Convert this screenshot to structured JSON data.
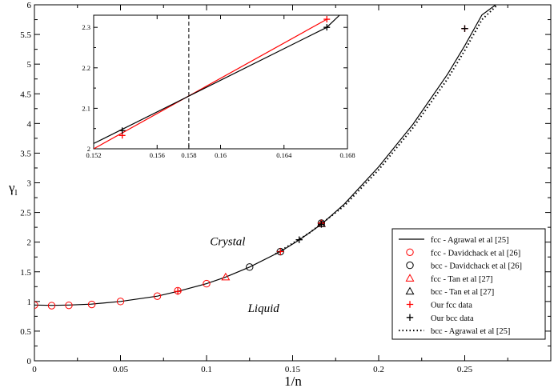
{
  "chart_data": {
    "type": "scatter",
    "title": "",
    "xlabel": "1/n",
    "ylabel_main": "γ",
    "ylabel_sub": "l",
    "xlim": [
      0,
      0.3
    ],
    "ylim": [
      0,
      6
    ],
    "xticks": [
      0,
      0.05,
      0.1,
      0.15,
      0.2,
      0.25
    ],
    "xtick_labels": [
      "0",
      "0.05",
      "0.1",
      "0.15",
      "0.2",
      "0.25"
    ],
    "yticks": [
      0,
      0.5,
      1,
      1.5,
      2,
      2.5,
      3,
      3.5,
      4,
      4.5,
      5,
      5.5,
      6
    ],
    "ytick_labels": [
      "0",
      "0.5",
      "1",
      "1.5",
      "2",
      "2.5",
      "3",
      "3.5",
      "4",
      "4.5",
      "5",
      "5.5",
      "6"
    ],
    "annotations": [
      {
        "text": "Crystal",
        "x": 0.102,
        "y": 1.95
      },
      {
        "text": "Liquid",
        "x": 0.124,
        "y": 0.82
      }
    ],
    "legend_position": "bottom-right",
    "series": [
      {
        "name": "fcc - Agrawal et al [25]",
        "kind": "line",
        "style": "solid",
        "color": "#000000",
        "x": [
          0,
          0.01,
          0.02,
          0.033,
          0.05,
          0.0714,
          0.0833,
          0.1,
          0.111,
          0.125,
          0.1429,
          0.154,
          0.1667,
          0.18,
          0.2,
          0.22,
          0.24,
          0.25,
          0.26,
          0.268
        ],
        "y": [
          0.94,
          0.935,
          0.94,
          0.955,
          1.0,
          1.09,
          1.17,
          1.3,
          1.41,
          1.58,
          1.84,
          2.04,
          2.3,
          2.64,
          3.27,
          3.99,
          4.83,
          5.31,
          5.83,
          6.0
        ]
      },
      {
        "name": "fcc - Davidchack et al [26]",
        "kind": "marker",
        "marker": "circle",
        "color": "#ff0000",
        "x": [
          0,
          0.01,
          0.02,
          0.0333,
          0.05,
          0.0714,
          0.0833,
          0.1
        ],
        "y": [
          0.94,
          0.93,
          0.935,
          0.95,
          1.0,
          1.09,
          1.18,
          1.3
        ]
      },
      {
        "name": "bcc - Davidchack et al [26]",
        "kind": "marker",
        "marker": "circle",
        "color": "#000000",
        "x": [
          0.125,
          0.1429,
          0.1667
        ],
        "y": [
          1.58,
          1.84,
          2.32
        ]
      },
      {
        "name": "fcc - Tan et al [27]",
        "kind": "marker",
        "marker": "triangle",
        "color": "#ff0000",
        "x": [
          0.1111,
          0.1667
        ],
        "y": [
          1.41,
          2.31
        ]
      },
      {
        "name": "bcc - Tan et al [27]",
        "kind": "marker",
        "marker": "triangle",
        "color": "#000000",
        "x": [
          0.1667
        ],
        "y": [
          2.31
        ]
      },
      {
        "name": "Our fcc data",
        "kind": "marker",
        "marker": "plus",
        "color": "#ff0000",
        "x": [
          0.0833,
          0.1429,
          0.1667,
          0.25
        ],
        "y": [
          1.17,
          1.84,
          2.32,
          5.6
        ]
      },
      {
        "name": "Our bcc data",
        "kind": "marker",
        "marker": "plus",
        "color": "#000000",
        "x": [
          0.1538,
          0.1667,
          0.25
        ],
        "y": [
          2.04,
          2.3,
          5.6
        ]
      },
      {
        "name": "bcc - Agrawal et al [25]",
        "kind": "line",
        "style": "dotted",
        "color": "#000000",
        "x": [
          0.14,
          0.16,
          0.18,
          0.2,
          0.22,
          0.24,
          0.25,
          0.26,
          0.269
        ],
        "y": [
          1.8,
          2.16,
          2.61,
          3.22,
          3.93,
          4.75,
          5.23,
          5.75,
          6.0
        ]
      }
    ],
    "inset": {
      "xlim": [
        0.152,
        0.168
      ],
      "ylim": [
        2.0,
        2.33
      ],
      "xticks": [
        0.152,
        0.156,
        0.158,
        0.16,
        0.164,
        0.168
      ],
      "xtick_labels": [
        "0.152",
        "0.156",
        "0.158",
        "0.16",
        "0.164",
        "0.168"
      ],
      "yticks": [
        2.0,
        2.1,
        2.2,
        2.3
      ],
      "ytick_labels": [
        "2",
        "2.1",
        "2.2",
        "2.3"
      ],
      "vline_x": 0.158,
      "series": [
        {
          "name": "fcc",
          "color": "#ff0000",
          "x": [
            0.152,
            0.1667
          ],
          "y": [
            2.0,
            2.32
          ],
          "markers_x": [
            0.1538,
            0.1667
          ],
          "markers_y": [
            2.033,
            2.32
          ]
        },
        {
          "name": "bcc",
          "color": "#000000",
          "x": [
            0.152,
            0.1667,
            0.1675
          ],
          "y": [
            2.013,
            2.3,
            2.33
          ],
          "markers_x": [
            0.1538,
            0.1667
          ],
          "markers_y": [
            2.045,
            2.3
          ]
        }
      ]
    }
  }
}
